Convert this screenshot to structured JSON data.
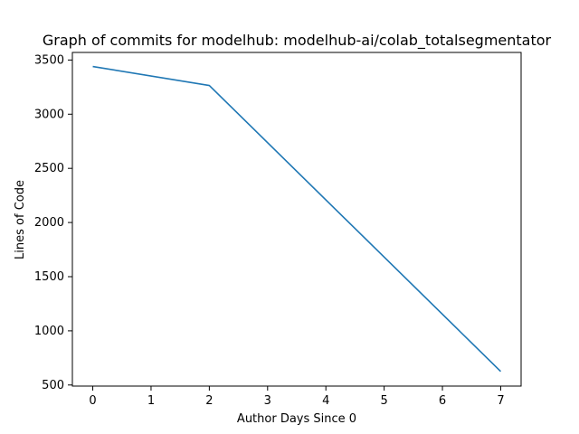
{
  "chart_data": {
    "type": "line",
    "title": "Graph of commits for modelhub: modelhub-ai/colab_totalsegmentator",
    "xlabel": "Author Days Since 0",
    "ylabel": "Lines of Code",
    "x_ticks": [
      "0",
      "1",
      "2",
      "3",
      "4",
      "5",
      "6",
      "7"
    ],
    "y_ticks": [
      "500",
      "1000",
      "1500",
      "2000",
      "2500",
      "3000",
      "3500"
    ],
    "xlim": [
      -0.35,
      7.35
    ],
    "ylim": [
      490,
      3570
    ],
    "grid": false,
    "legend": "none",
    "series": [
      {
        "x": [
          0,
          2,
          7
        ],
        "y": [
          3440,
          3265,
          625
        ],
        "color": "#1f77b4"
      }
    ]
  }
}
